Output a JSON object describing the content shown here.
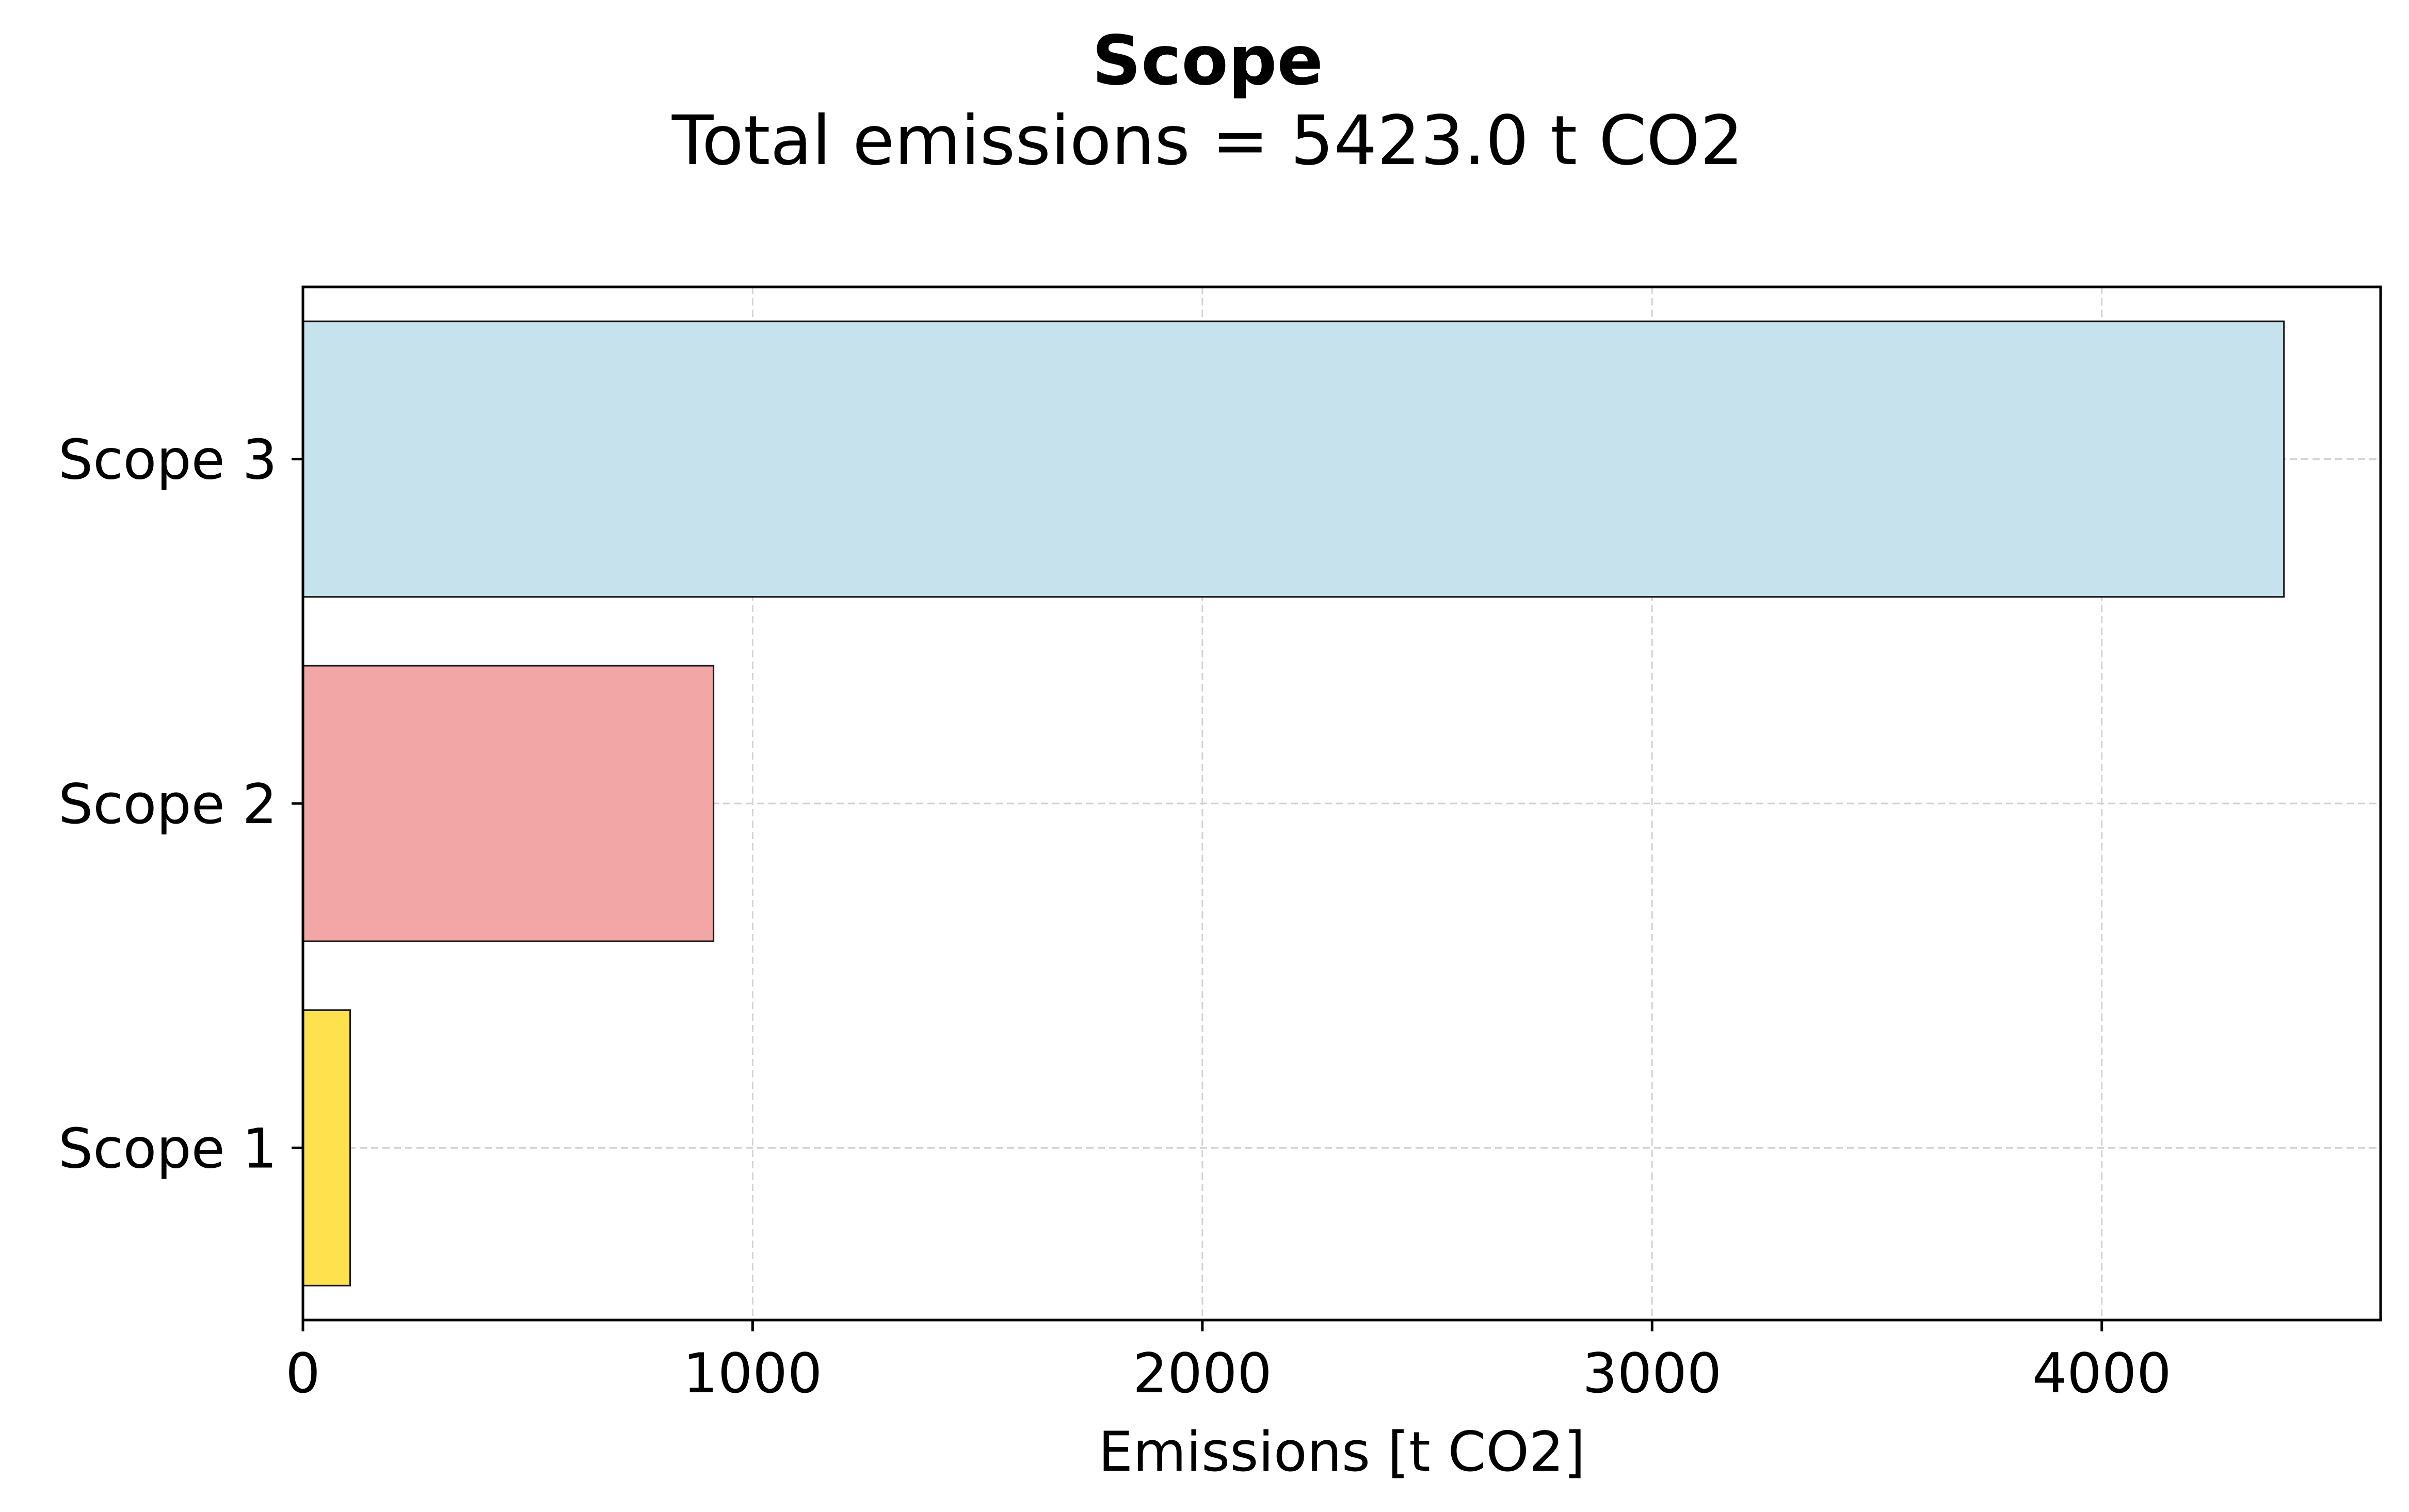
{
  "chart_data": {
    "type": "bar",
    "orientation": "horizontal",
    "title": "Scope",
    "subtitle": "Total emissions = 5423.0 t CO2",
    "xlabel": "Emissions [t CO2]",
    "ylabel": "",
    "categories": [
      "Scope 1",
      "Scope 2",
      "Scope 3"
    ],
    "values": [
      105,
      913,
      4405
    ],
    "colors": [
      "#ffe14d",
      "#f3a6a6",
      "#c6e3ed"
    ],
    "xlim": [
      0,
      4620
    ],
    "xticks": [
      0,
      1000,
      2000,
      3000,
      4000
    ],
    "xtick_labels": [
      "0",
      "1000",
      "2000",
      "3000",
      "4000"
    ],
    "grid": true,
    "legend": "none"
  }
}
